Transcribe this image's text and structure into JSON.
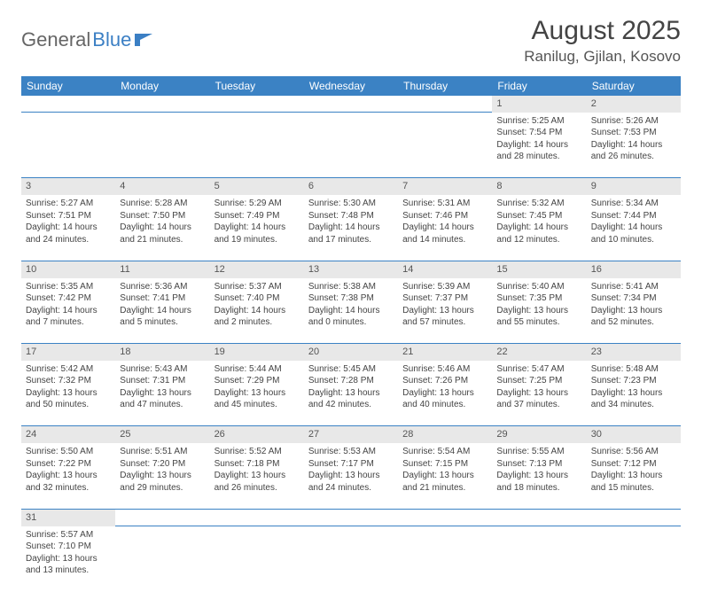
{
  "brand": {
    "part1": "General",
    "part2": "Blue"
  },
  "title": "August 2025",
  "location": "Ranilug, Gjilan, Kosovo",
  "colors": {
    "header_bg": "#3b82c4",
    "header_text": "#ffffff",
    "daynum_bg": "#e8e8e8",
    "text": "#444444",
    "rule": "#3b82c4"
  },
  "weekdays": [
    "Sunday",
    "Monday",
    "Tuesday",
    "Wednesday",
    "Thursday",
    "Friday",
    "Saturday"
  ],
  "weeks": [
    [
      null,
      null,
      null,
      null,
      null,
      {
        "n": "1",
        "sunrise": "Sunrise: 5:25 AM",
        "sunset": "Sunset: 7:54 PM",
        "day1": "Daylight: 14 hours",
        "day2": "and 28 minutes."
      },
      {
        "n": "2",
        "sunrise": "Sunrise: 5:26 AM",
        "sunset": "Sunset: 7:53 PM",
        "day1": "Daylight: 14 hours",
        "day2": "and 26 minutes."
      }
    ],
    [
      {
        "n": "3",
        "sunrise": "Sunrise: 5:27 AM",
        "sunset": "Sunset: 7:51 PM",
        "day1": "Daylight: 14 hours",
        "day2": "and 24 minutes."
      },
      {
        "n": "4",
        "sunrise": "Sunrise: 5:28 AM",
        "sunset": "Sunset: 7:50 PM",
        "day1": "Daylight: 14 hours",
        "day2": "and 21 minutes."
      },
      {
        "n": "5",
        "sunrise": "Sunrise: 5:29 AM",
        "sunset": "Sunset: 7:49 PM",
        "day1": "Daylight: 14 hours",
        "day2": "and 19 minutes."
      },
      {
        "n": "6",
        "sunrise": "Sunrise: 5:30 AM",
        "sunset": "Sunset: 7:48 PM",
        "day1": "Daylight: 14 hours",
        "day2": "and 17 minutes."
      },
      {
        "n": "7",
        "sunrise": "Sunrise: 5:31 AM",
        "sunset": "Sunset: 7:46 PM",
        "day1": "Daylight: 14 hours",
        "day2": "and 14 minutes."
      },
      {
        "n": "8",
        "sunrise": "Sunrise: 5:32 AM",
        "sunset": "Sunset: 7:45 PM",
        "day1": "Daylight: 14 hours",
        "day2": "and 12 minutes."
      },
      {
        "n": "9",
        "sunrise": "Sunrise: 5:34 AM",
        "sunset": "Sunset: 7:44 PM",
        "day1": "Daylight: 14 hours",
        "day2": "and 10 minutes."
      }
    ],
    [
      {
        "n": "10",
        "sunrise": "Sunrise: 5:35 AM",
        "sunset": "Sunset: 7:42 PM",
        "day1": "Daylight: 14 hours",
        "day2": "and 7 minutes."
      },
      {
        "n": "11",
        "sunrise": "Sunrise: 5:36 AM",
        "sunset": "Sunset: 7:41 PM",
        "day1": "Daylight: 14 hours",
        "day2": "and 5 minutes."
      },
      {
        "n": "12",
        "sunrise": "Sunrise: 5:37 AM",
        "sunset": "Sunset: 7:40 PM",
        "day1": "Daylight: 14 hours",
        "day2": "and 2 minutes."
      },
      {
        "n": "13",
        "sunrise": "Sunrise: 5:38 AM",
        "sunset": "Sunset: 7:38 PM",
        "day1": "Daylight: 14 hours",
        "day2": "and 0 minutes."
      },
      {
        "n": "14",
        "sunrise": "Sunrise: 5:39 AM",
        "sunset": "Sunset: 7:37 PM",
        "day1": "Daylight: 13 hours",
        "day2": "and 57 minutes."
      },
      {
        "n": "15",
        "sunrise": "Sunrise: 5:40 AM",
        "sunset": "Sunset: 7:35 PM",
        "day1": "Daylight: 13 hours",
        "day2": "and 55 minutes."
      },
      {
        "n": "16",
        "sunrise": "Sunrise: 5:41 AM",
        "sunset": "Sunset: 7:34 PM",
        "day1": "Daylight: 13 hours",
        "day2": "and 52 minutes."
      }
    ],
    [
      {
        "n": "17",
        "sunrise": "Sunrise: 5:42 AM",
        "sunset": "Sunset: 7:32 PM",
        "day1": "Daylight: 13 hours",
        "day2": "and 50 minutes."
      },
      {
        "n": "18",
        "sunrise": "Sunrise: 5:43 AM",
        "sunset": "Sunset: 7:31 PM",
        "day1": "Daylight: 13 hours",
        "day2": "and 47 minutes."
      },
      {
        "n": "19",
        "sunrise": "Sunrise: 5:44 AM",
        "sunset": "Sunset: 7:29 PM",
        "day1": "Daylight: 13 hours",
        "day2": "and 45 minutes."
      },
      {
        "n": "20",
        "sunrise": "Sunrise: 5:45 AM",
        "sunset": "Sunset: 7:28 PM",
        "day1": "Daylight: 13 hours",
        "day2": "and 42 minutes."
      },
      {
        "n": "21",
        "sunrise": "Sunrise: 5:46 AM",
        "sunset": "Sunset: 7:26 PM",
        "day1": "Daylight: 13 hours",
        "day2": "and 40 minutes."
      },
      {
        "n": "22",
        "sunrise": "Sunrise: 5:47 AM",
        "sunset": "Sunset: 7:25 PM",
        "day1": "Daylight: 13 hours",
        "day2": "and 37 minutes."
      },
      {
        "n": "23",
        "sunrise": "Sunrise: 5:48 AM",
        "sunset": "Sunset: 7:23 PM",
        "day1": "Daylight: 13 hours",
        "day2": "and 34 minutes."
      }
    ],
    [
      {
        "n": "24",
        "sunrise": "Sunrise: 5:50 AM",
        "sunset": "Sunset: 7:22 PM",
        "day1": "Daylight: 13 hours",
        "day2": "and 32 minutes."
      },
      {
        "n": "25",
        "sunrise": "Sunrise: 5:51 AM",
        "sunset": "Sunset: 7:20 PM",
        "day1": "Daylight: 13 hours",
        "day2": "and 29 minutes."
      },
      {
        "n": "26",
        "sunrise": "Sunrise: 5:52 AM",
        "sunset": "Sunset: 7:18 PM",
        "day1": "Daylight: 13 hours",
        "day2": "and 26 minutes."
      },
      {
        "n": "27",
        "sunrise": "Sunrise: 5:53 AM",
        "sunset": "Sunset: 7:17 PM",
        "day1": "Daylight: 13 hours",
        "day2": "and 24 minutes."
      },
      {
        "n": "28",
        "sunrise": "Sunrise: 5:54 AM",
        "sunset": "Sunset: 7:15 PM",
        "day1": "Daylight: 13 hours",
        "day2": "and 21 minutes."
      },
      {
        "n": "29",
        "sunrise": "Sunrise: 5:55 AM",
        "sunset": "Sunset: 7:13 PM",
        "day1": "Daylight: 13 hours",
        "day2": "and 18 minutes."
      },
      {
        "n": "30",
        "sunrise": "Sunrise: 5:56 AM",
        "sunset": "Sunset: 7:12 PM",
        "day1": "Daylight: 13 hours",
        "day2": "and 15 minutes."
      }
    ],
    [
      {
        "n": "31",
        "sunrise": "Sunrise: 5:57 AM",
        "sunset": "Sunset: 7:10 PM",
        "day1": "Daylight: 13 hours",
        "day2": "and 13 minutes."
      },
      null,
      null,
      null,
      null,
      null,
      null
    ]
  ]
}
